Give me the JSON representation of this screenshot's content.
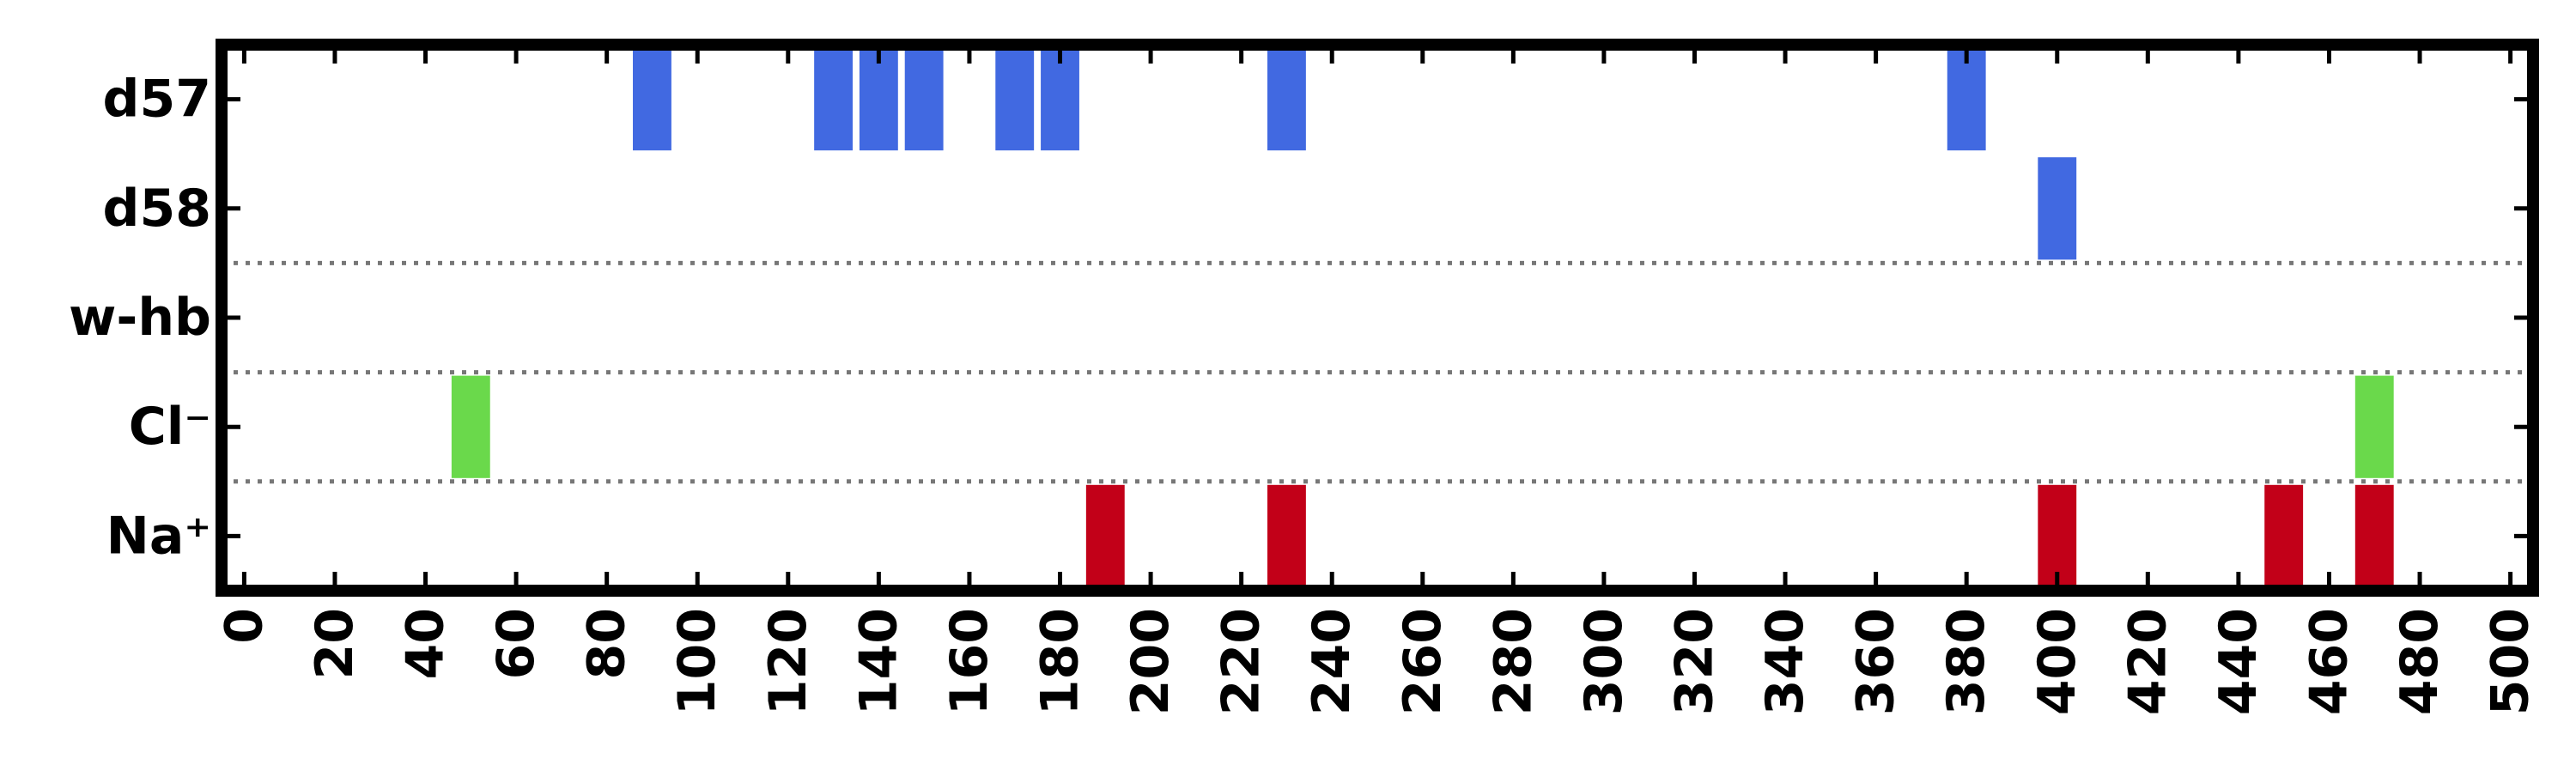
{
  "chart_data": {
    "type": "bar",
    "title": "",
    "xlabel": "",
    "ylabel": "",
    "xlim": [
      -5,
      505
    ],
    "x_ticks": [
      0,
      20,
      40,
      60,
      80,
      100,
      120,
      140,
      160,
      180,
      200,
      220,
      240,
      260,
      280,
      300,
      320,
      340,
      360,
      380,
      400,
      420,
      440,
      460,
      480,
      500
    ],
    "x_tick_labels": [
      "0",
      "20",
      "40",
      "60",
      "80",
      "100",
      "120",
      "140",
      "160",
      "180",
      "200",
      "220",
      "240",
      "260",
      "280",
      "300",
      "320",
      "340",
      "360",
      "380",
      "400",
      "420",
      "440",
      "460",
      "480",
      "500"
    ],
    "x_tick_label_rotation": "vertical",
    "categories": [
      "d57",
      "d58",
      "w-hb",
      "Cl⁻",
      "Na⁺"
    ],
    "y_tick_labels": [
      "d57",
      "d58",
      "w-hb",
      "Cl⁻",
      "Na⁺"
    ],
    "grid": "dotted separators below d58, w-hb and Cl⁻ rows",
    "series": [
      {
        "category": "d57",
        "color": "#4169e1",
        "x": [
          90,
          130,
          140,
          150,
          170,
          180,
          230,
          380
        ]
      },
      {
        "category": "d58",
        "color": "#4169e1",
        "x": [
          400
        ]
      },
      {
        "category": "w-hb",
        "color": "#4169e1",
        "x": []
      },
      {
        "category": "Cl⁻",
        "color": "#6ad94b",
        "x": [
          50,
          470
        ]
      },
      {
        "category": "Na⁺",
        "color": "#c20018",
        "x": [
          190,
          230,
          400,
          450,
          470
        ]
      }
    ],
    "bar_width": 8.5,
    "separator_color": "#777777"
  }
}
